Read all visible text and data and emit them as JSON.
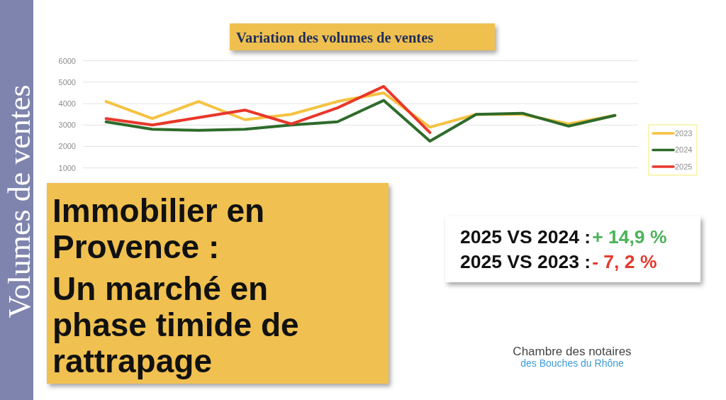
{
  "chart_data": {
    "type": "line",
    "title": "Variation des volumes de ventes",
    "categories": [
      null,
      null,
      null,
      null,
      null,
      null,
      null,
      null,
      null,
      null,
      null,
      null
    ],
    "series": [
      {
        "name": "2023",
        "color": "#f5c242",
        "values": [
          4100,
          3300,
          4100,
          3250,
          3500,
          4100,
          4500,
          2900,
          3500,
          3500,
          3050,
          3450
        ]
      },
      {
        "name": "2024",
        "color": "#2e6b2a",
        "values": [
          3150,
          2800,
          2750,
          2800,
          3000,
          3150,
          4150,
          2250,
          3500,
          3550,
          2950,
          3450
        ]
      },
      {
        "name": "2025",
        "color": "#e8372a",
        "values": [
          3300,
          3000,
          3350,
          3700,
          3050,
          3800,
          4800,
          2650,
          null,
          null,
          null,
          null
        ]
      }
    ],
    "ylim": [
      1000,
      6000
    ],
    "yticks": [
      1000,
      2000,
      3000,
      4000,
      5000,
      6000
    ],
    "grid": "y",
    "legend": "right",
    "tick_labels": "y",
    "annotations": [
      "Volumes de ventes",
      "Immobilier en Provence :",
      "Un marché en phase timide de rattrapage",
      "2025 VS 2024 :",
      "+ 14,9 %",
      "2025 VS 2023 :",
      "- 7, 2 %",
      "Chambre des notaires",
      "des Bouches du Rhône"
    ]
  }
}
